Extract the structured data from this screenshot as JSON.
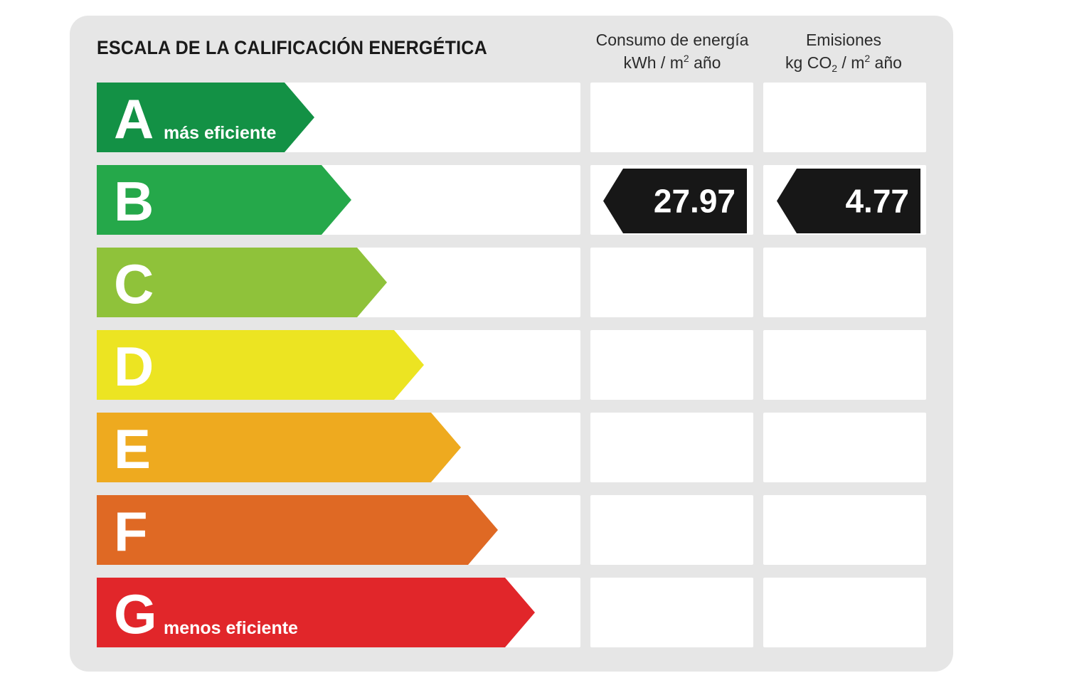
{
  "header": {
    "title": "ESCALA DE LA CALIFICACIÓN ENERGÉTICA",
    "energy_col": {
      "line1": "Consumo de energía",
      "line2_a": "kWh / m",
      "line2_sup": "2",
      "line2_b": " año"
    },
    "emissions_col": {
      "line1": "Emisiones",
      "line2_a": "kg CO",
      "line2_sub": "2",
      "line2_b": " / m",
      "line2_sup": "2",
      "line2_c": " año"
    }
  },
  "chart_data": {
    "type": "bar",
    "categories": [
      "A",
      "B",
      "C",
      "D",
      "E",
      "F",
      "G"
    ],
    "annotations": {
      "A": "más eficiente",
      "G": "menos eficiente"
    },
    "colors": [
      "#139145",
      "#25a84a",
      "#8fc23a",
      "#ece422",
      "#eeaa1f",
      "#df6924",
      "#e1262a"
    ],
    "rating": "B",
    "energy_value": "27.97",
    "emissions_value": "4.77"
  }
}
